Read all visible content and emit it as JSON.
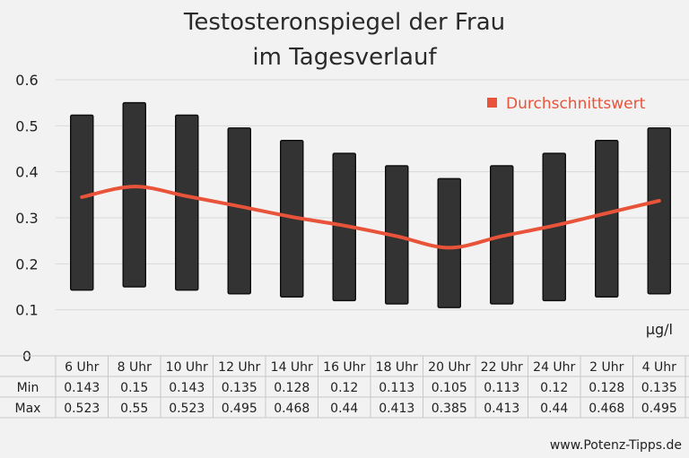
{
  "chart_data": {
    "type": "bar",
    "subtype": "floating-range-with-line",
    "title_lines": [
      "Testosteronspiegel der Frau",
      "im Tagesverlauf"
    ],
    "unit": "µg/l",
    "yticks": [
      "0",
      "0.1",
      "0.2",
      "0.3",
      "0.4",
      "0.5",
      "0.6"
    ],
    "ylim": [
      0,
      0.6
    ],
    "grid": true,
    "categories": [
      "6 Uhr",
      "8 Uhr",
      "10 Uhr",
      "12 Uhr",
      "14 Uhr",
      "16 Uhr",
      "18 Uhr",
      "20 Uhr",
      "22 Uhr",
      "24 Uhr",
      "2 Uhr",
      "4 Uhr"
    ],
    "series": [
      {
        "name": "Min",
        "values": [
          0.143,
          0.15,
          0.143,
          0.135,
          0.128,
          0.12,
          0.113,
          0.105,
          0.113,
          0.12,
          0.128,
          0.135
        ]
      },
      {
        "name": "Max",
        "values": [
          0.523,
          0.55,
          0.523,
          0.495,
          0.468,
          0.44,
          0.413,
          0.385,
          0.413,
          0.44,
          0.468,
          0.495
        ]
      },
      {
        "name": "Durchschnittswert",
        "values": [
          0.345,
          0.368,
          0.347,
          0.325,
          0.302,
          0.283,
          0.26,
          0.235,
          0.26,
          0.283,
          0.31,
          0.337
        ]
      }
    ],
    "table_labels": {
      "min": "Min",
      "max": "Max"
    },
    "min_display": [
      "0.143",
      "0.15",
      "0.143",
      "0.135",
      "0.128",
      "0.12",
      "0.113",
      "0.105",
      "0.113",
      "0.12",
      "0.128",
      "0.135"
    ],
    "max_display": [
      "0.523",
      "0.55",
      "0.523",
      "0.495",
      "0.468",
      "0.44",
      "0.413",
      "0.385",
      "0.413",
      "0.44",
      "0.468",
      "0.495"
    ],
    "legend": {
      "label": "Durchschnittswert",
      "position": "top-right"
    },
    "colors": {
      "bar": "#333333",
      "bar_border": "#111111",
      "line": "#e8533a",
      "grid": "#d9d9d9",
      "background": "#f2f2f2"
    }
  },
  "footer": {
    "source": "www.Potenz-Tipps.de"
  }
}
